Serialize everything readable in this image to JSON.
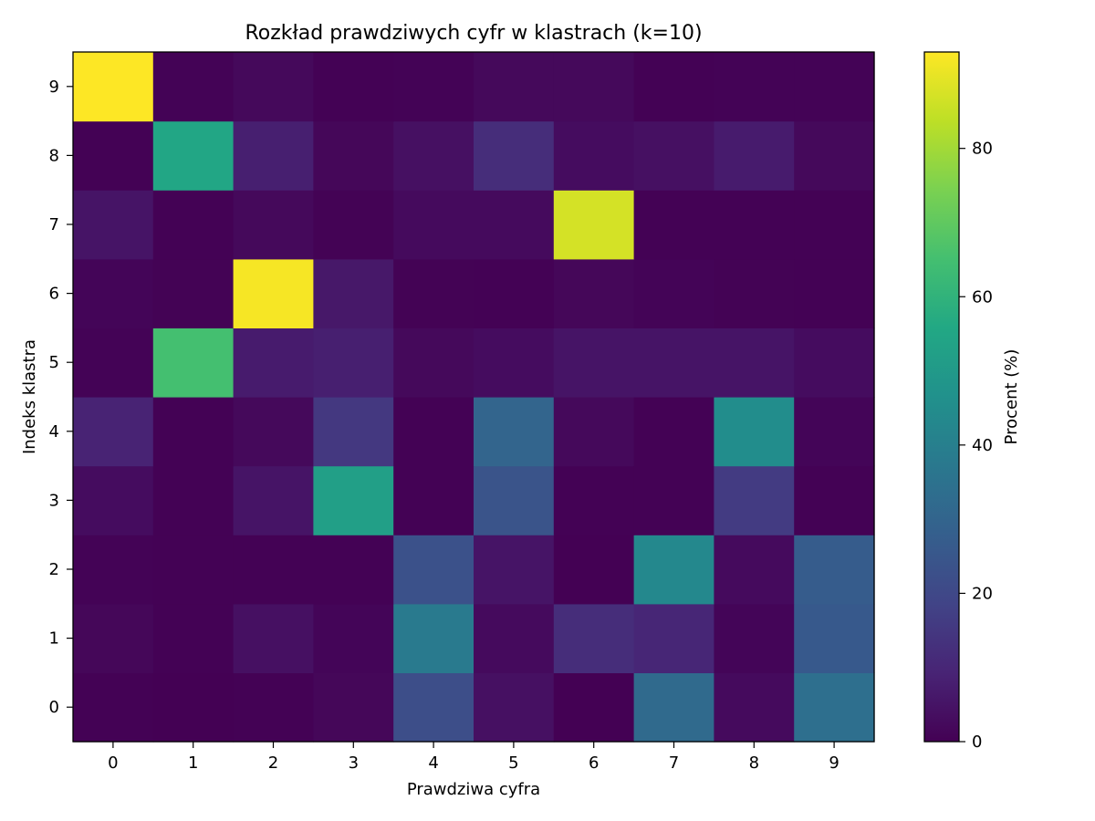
{
  "chart_data": {
    "type": "heatmap",
    "title": "Rozkład prawdziwych cyfr w klastrach (k=10)",
    "xlabel": "Prawdziwa cyfra",
    "ylabel": "Indeks klastra",
    "x_categories": [
      "0",
      "1",
      "2",
      "3",
      "4",
      "5",
      "6",
      "7",
      "8",
      "9"
    ],
    "y_categories": [
      "0",
      "1",
      "2",
      "3",
      "4",
      "5",
      "6",
      "7",
      "8",
      "9"
    ],
    "matrix": [
      [
        0.2,
        0.1,
        0.3,
        1.5,
        22.0,
        4.0,
        0.1,
        32.0,
        2.5,
        34.0
      ],
      [
        1.5,
        0.3,
        4.0,
        1.0,
        38.0,
        2.5,
        12.0,
        10.0,
        1.0,
        26.0
      ],
      [
        0.5,
        0.2,
        0.3,
        0.2,
        23.0,
        5.0,
        0.1,
        43.0,
        2.5,
        27.0
      ],
      [
        3.0,
        0.2,
        5.0,
        52.0,
        0.3,
        24.0,
        0.3,
        0.2,
        16.0,
        0.2
      ],
      [
        9.0,
        0.3,
        2.0,
        15.0,
        0.3,
        30.0,
        2.0,
        0.2,
        45.0,
        1.0
      ],
      [
        0.5,
        65.0,
        7.0,
        8.0,
        2.0,
        3.0,
        5.0,
        5.0,
        5.0,
        3.0
      ],
      [
        1.0,
        0.4,
        92.0,
        6.0,
        0.4,
        0.2,
        1.5,
        0.8,
        0.4,
        0.2
      ],
      [
        5.0,
        0.2,
        2.0,
        0.4,
        2.5,
        2.5,
        87.0,
        0.3,
        0.3,
        0.2
      ],
      [
        0.3,
        55.0,
        8.0,
        1.5,
        4.0,
        12.0,
        3.0,
        4.0,
        7.0,
        2.0
      ],
      [
        93.0,
        0.5,
        2.0,
        0.3,
        0.5,
        2.0,
        2.0,
        0.2,
        0.5,
        0.5
      ]
    ],
    "colormap": "viridis",
    "vmin": 0,
    "vmax": 93.0,
    "colorbar": {
      "label": "Procent (%)",
      "ticks": [
        0,
        20,
        40,
        60,
        80
      ]
    },
    "grid": false
  }
}
